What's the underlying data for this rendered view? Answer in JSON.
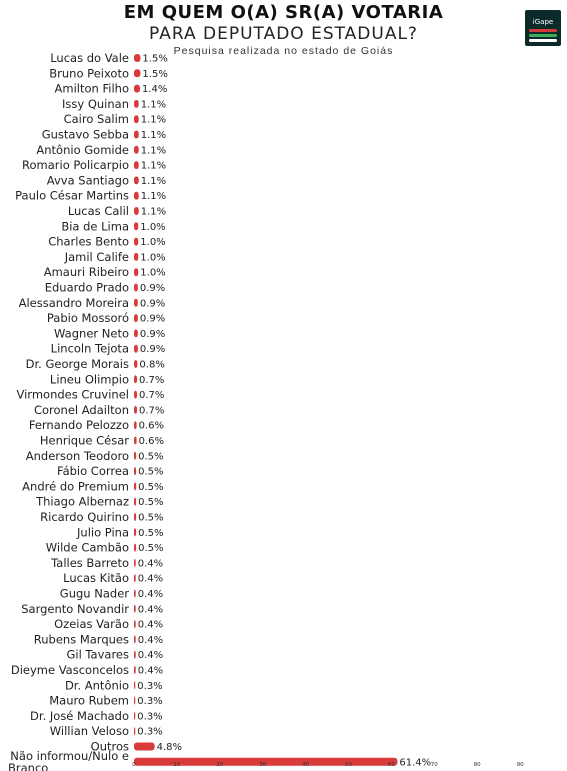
{
  "header": {
    "title": "EM QUEM O(A) SR(A) VOTARIA",
    "subtitle": "PARA DEPUTADO ESTADUAL?",
    "caption": "Pesquisa realizada no estado de Goiás",
    "logo_text": "iGape"
  },
  "colors": {
    "bar": "#d93a3a",
    "logo_bg": "#0d2a2a"
  },
  "chart_data": {
    "type": "bar",
    "orientation": "horizontal",
    "title": "EM QUEM O(A) SR(A) VOTARIA PARA DEPUTADO ESTADUAL?",
    "xlim": [
      0,
      100
    ],
    "x_ticks": [
      0,
      10,
      20,
      30,
      40,
      50,
      60,
      70,
      80,
      90
    ],
    "grid": false,
    "legend": "none",
    "categories": [
      "Lucas do Vale",
      "Bruno Peixoto",
      "Amilton Filho",
      "Issy Quinan",
      "Cairo Salim",
      "Gustavo Sebba",
      "Antônio Gomide",
      "Romario Policarpio",
      "Avva Santiago",
      "Paulo César Martins",
      "Lucas Calil",
      "Bia de Lima",
      "Charles Bento",
      "Jamil Calife",
      "Amauri Ribeiro",
      "Eduardo Prado",
      "Alessandro Moreira",
      "Pabio Mossoró",
      "Wagner Neto",
      "Lincoln Tejota",
      "Dr. George Morais",
      "Lineu Olimpio",
      "Virmondes Cruvinel",
      "Coronel Adailton",
      "Fernando Pelozzo",
      "Henrique César",
      "Anderson Teodoro",
      "Fábio Correa",
      "André do Premium",
      "Thiago Albernaz",
      "Ricardo Quirino",
      "Julio Pina",
      "Wilde Cambão",
      "Talles Barreto",
      "Lucas Kitão",
      "Gugu Nader",
      "Sargento Novandir",
      "Ozeias Varão",
      "Rubens Marques",
      "Gil Tavares",
      "Dieyme Vasconcelos",
      "Dr. Antônio",
      "Mauro Rubem",
      "Dr. José Machado",
      "Willian Veloso",
      "Outros",
      "Não informou/Nulo e Branco"
    ],
    "values": [
      1.5,
      1.5,
      1.4,
      1.1,
      1.1,
      1.1,
      1.1,
      1.1,
      1.1,
      1.1,
      1.1,
      1.0,
      1.0,
      1.0,
      1.0,
      0.9,
      0.9,
      0.9,
      0.9,
      0.9,
      0.8,
      0.7,
      0.7,
      0.7,
      0.6,
      0.6,
      0.5,
      0.5,
      0.5,
      0.5,
      0.5,
      0.5,
      0.5,
      0.4,
      0.4,
      0.4,
      0.4,
      0.4,
      0.4,
      0.4,
      0.4,
      0.3,
      0.3,
      0.3,
      0.3,
      4.8,
      61.4
    ],
    "value_labels": [
      "1.5%",
      "1.5%",
      "1.4%",
      "1.1%",
      "1.1%",
      "1.1%",
      "1.1%",
      "1.1%",
      "1.1%",
      "1.1%",
      "1.1%",
      "1.0%",
      "1.0%",
      "1.0%",
      "1.0%",
      "0.9%",
      "0.9%",
      "0.9%",
      "0.9%",
      "0.9%",
      "0.8%",
      "0.7%",
      "0.7%",
      "0.7%",
      "0.6%",
      "0.6%",
      "0.5%",
      "0.5%",
      "0.5%",
      "0.5%",
      "0.5%",
      "0.5%",
      "0.5%",
      "0.4%",
      "0.4%",
      "0.4%",
      "0.4%",
      "0.4%",
      "0.4%",
      "0.4%",
      "0.4%",
      "0.3%",
      "0.3%",
      "0.3%",
      "0.3%",
      "4.8%",
      "61.4%"
    ]
  }
}
